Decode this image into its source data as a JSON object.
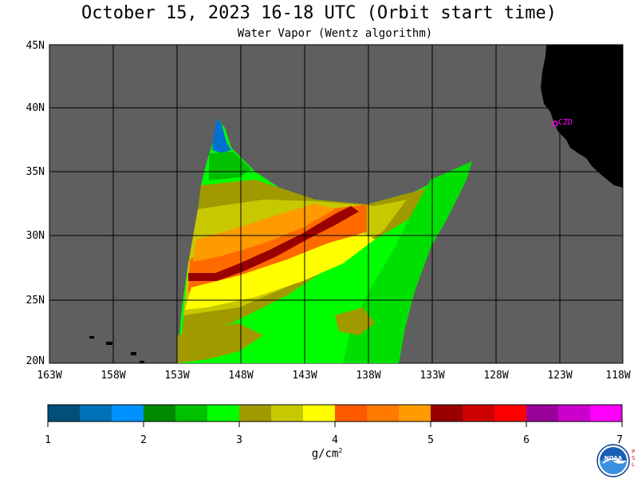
{
  "header": {
    "title": "October 15, 2023  16-18 UTC  (Orbit start time)",
    "subtitle": "Water Vapor (Wentz algorithm)"
  },
  "map": {
    "lat_labels": [
      "45N",
      "40N",
      "35N",
      "30N",
      "25N",
      "20N"
    ],
    "lon_labels": [
      "163W",
      "158W",
      "153W",
      "148W",
      "143W",
      "138W",
      "133W",
      "128W",
      "123W",
      "118W"
    ],
    "station_label": "CZD",
    "colors": {
      "ocean_no_data": "#5f5f5f",
      "land": "#000000",
      "grid": "#000000",
      "station": "#ff00ff"
    }
  },
  "colorbar": {
    "labels": [
      "1",
      "2",
      "3",
      "4",
      "5",
      "6",
      "7"
    ],
    "unit": "g/cm",
    "unit_superscript": "2",
    "colors": [
      "#00507a",
      "#0070b8",
      "#0090ff",
      "#008800",
      "#00c000",
      "#00ff00",
      "#a09a00",
      "#c8c800",
      "#ffff00",
      "#ff5a00",
      "#ff7a00",
      "#ff9a00",
      "#990000",
      "#cc0000",
      "#ff0000",
      "#990099",
      "#cc00cc",
      "#ff00ff"
    ]
  },
  "logo": {
    "name": "noaa-logo",
    "text": "NOAA",
    "side_text": "PSL"
  }
}
